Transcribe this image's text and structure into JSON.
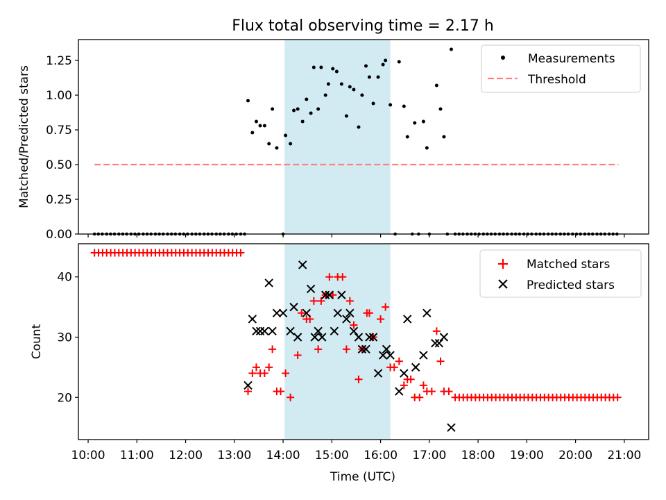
{
  "chart_data": {
    "type": "scatter",
    "title": "Flux total observing time = 2.17 h",
    "xlabel": "Time (UTC)",
    "x_range_hours": [
      9.8,
      21.5
    ],
    "x_ticks": [
      10,
      11,
      12,
      13,
      14,
      15,
      16,
      17,
      18,
      19,
      20,
      21
    ],
    "x_tick_labels": [
      "10:00",
      "11:00",
      "12:00",
      "13:00",
      "14:00",
      "15:00",
      "16:00",
      "17:00",
      "18:00",
      "19:00",
      "20:00",
      "21:00"
    ],
    "highlight_span_hours": [
      14.03,
      16.2
    ],
    "highlight_color": "#add8e6",
    "panels": [
      {
        "name": "ratio",
        "ylabel": "Matched/Predicted stars",
        "ylim": [
          0,
          1.4
        ],
        "y_ticks": [
          0,
          0.25,
          0.5,
          0.75,
          1.0,
          1.25
        ],
        "y_tick_labels": [
          "0.00",
          "0.25",
          "0.50",
          "0.75",
          "1.00",
          "1.25"
        ],
        "legend": [
          "Measurements",
          "Threshold"
        ],
        "measurements": {
          "name": "Measurements",
          "color": "#000000",
          "zero_times": [
            10.13,
            10.21,
            10.29,
            10.38,
            10.46,
            10.54,
            10.63,
            10.71,
            10.79,
            10.88,
            10.96,
            11.04,
            11.13,
            11.21,
            11.29,
            11.38,
            11.46,
            11.54,
            11.63,
            11.71,
            11.79,
            11.88,
            11.96,
            12.04,
            12.13,
            12.21,
            12.29,
            12.38,
            12.46,
            12.54,
            12.63,
            12.71,
            12.79,
            12.88,
            12.96,
            13.04,
            13.13,
            13.21,
            14.0,
            16.3,
            16.65,
            16.78,
            17.0,
            17.37,
            17.53,
            17.61,
            17.69,
            17.78,
            17.86,
            17.94,
            18.02,
            18.11,
            18.19,
            18.27,
            18.35,
            18.44,
            18.52,
            18.6,
            18.69,
            18.77,
            18.85,
            18.94,
            19.02,
            19.1,
            19.19,
            19.27,
            19.35,
            19.44,
            19.52,
            19.6,
            19.69,
            19.77,
            19.85,
            19.94,
            20.02,
            20.1,
            20.19,
            20.27,
            20.35,
            20.44,
            20.52,
            20.6,
            20.69,
            20.77,
            20.85
          ],
          "points": [
            [
              13.28,
              0.96
            ],
            [
              13.37,
              0.73
            ],
            [
              13.45,
              0.81
            ],
            [
              13.53,
              0.78
            ],
            [
              13.62,
              0.78
            ],
            [
              13.71,
              0.65
            ],
            [
              13.78,
              0.9
            ],
            [
              13.87,
              0.62
            ],
            [
              14.05,
              0.71
            ],
            [
              14.15,
              0.65
            ],
            [
              14.22,
              0.89
            ],
            [
              14.3,
              0.9
            ],
            [
              14.4,
              0.81
            ],
            [
              14.48,
              0.97
            ],
            [
              14.57,
              0.87
            ],
            [
              14.63,
              1.2
            ],
            [
              14.72,
              0.9
            ],
            [
              14.78,
              1.2
            ],
            [
              14.87,
              1.0
            ],
            [
              14.93,
              1.08
            ],
            [
              15.02,
              1.19
            ],
            [
              15.1,
              1.17
            ],
            [
              15.2,
              1.08
            ],
            [
              15.3,
              0.85
            ],
            [
              15.37,
              1.06
            ],
            [
              15.45,
              1.04
            ],
            [
              15.55,
              0.77
            ],
            [
              15.62,
              1.0
            ],
            [
              15.7,
              1.21
            ],
            [
              15.77,
              1.13
            ],
            [
              15.85,
              0.94
            ],
            [
              15.95,
              1.13
            ],
            [
              16.05,
              1.22
            ],
            [
              16.1,
              1.25
            ],
            [
              16.2,
              0.93
            ],
            [
              16.38,
              1.24
            ],
            [
              16.48,
              0.92
            ],
            [
              16.55,
              0.7
            ],
            [
              16.7,
              0.8
            ],
            [
              16.88,
              0.81
            ],
            [
              16.95,
              0.62
            ],
            [
              17.15,
              1.07
            ],
            [
              17.23,
              0.9
            ],
            [
              17.3,
              0.7
            ],
            [
              17.45,
              1.33
            ]
          ]
        },
        "threshold": {
          "name": "Threshold",
          "value": 0.5,
          "x_range_hours": [
            10.13,
            20.88
          ],
          "color": "#ff7f7f"
        }
      },
      {
        "name": "count",
        "ylabel": "Count",
        "ylim": [
          13,
          45.5
        ],
        "y_ticks": [
          20,
          30,
          40
        ],
        "y_tick_labels": [
          "20",
          "30",
          "40"
        ],
        "legend": [
          "Matched stars",
          "Predicted stars"
        ],
        "matched": {
          "name": "Matched stars",
          "color": "#ff0000",
          "flat_start": {
            "from": 10.13,
            "to": 13.21,
            "step": 0.0833,
            "value": 44
          },
          "flat_end": {
            "from": 17.53,
            "to": 20.88,
            "step": 0.0833,
            "value": 20
          },
          "points": [
            [
              13.28,
              21
            ],
            [
              13.37,
              24
            ],
            [
              13.45,
              25
            ],
            [
              13.53,
              24
            ],
            [
              13.62,
              24
            ],
            [
              13.71,
              25
            ],
            [
              13.78,
              28
            ],
            [
              13.87,
              21
            ],
            [
              13.95,
              21
            ],
            [
              14.05,
              24
            ],
            [
              14.15,
              20
            ],
            [
              14.3,
              27
            ],
            [
              14.38,
              34
            ],
            [
              14.48,
              33
            ],
            [
              14.55,
              33
            ],
            [
              14.63,
              36
            ],
            [
              14.72,
              28
            ],
            [
              14.78,
              36
            ],
            [
              14.87,
              37
            ],
            [
              14.95,
              40
            ],
            [
              15.02,
              37
            ],
            [
              15.12,
              40
            ],
            [
              15.22,
              40
            ],
            [
              15.3,
              28
            ],
            [
              15.37,
              36
            ],
            [
              15.45,
              32
            ],
            [
              15.55,
              23
            ],
            [
              15.62,
              28
            ],
            [
              15.72,
              34
            ],
            [
              15.77,
              34
            ],
            [
              15.85,
              30
            ],
            [
              16.0,
              33
            ],
            [
              16.1,
              35
            ],
            [
              16.2,
              25
            ],
            [
              16.28,
              25
            ],
            [
              16.38,
              26
            ],
            [
              16.48,
              22
            ],
            [
              16.55,
              23
            ],
            [
              16.62,
              23
            ],
            [
              16.7,
              20
            ],
            [
              16.8,
              20
            ],
            [
              16.88,
              22
            ],
            [
              16.95,
              21
            ],
            [
              17.05,
              21
            ],
            [
              17.15,
              31
            ],
            [
              17.23,
              26
            ],
            [
              17.3,
              21
            ],
            [
              17.4,
              21
            ]
          ]
        },
        "predicted": {
          "name": "Predicted stars",
          "color": "#000000",
          "points": [
            [
              13.28,
              22
            ],
            [
              13.37,
              33
            ],
            [
              13.45,
              31
            ],
            [
              13.53,
              31
            ],
            [
              13.62,
              31
            ],
            [
              13.71,
              39
            ],
            [
              13.78,
              31
            ],
            [
              13.87,
              34
            ],
            [
              14.0,
              34
            ],
            [
              14.15,
              31
            ],
            [
              14.22,
              35
            ],
            [
              14.3,
              30
            ],
            [
              14.4,
              42
            ],
            [
              14.48,
              34
            ],
            [
              14.57,
              38
            ],
            [
              14.65,
              30
            ],
            [
              14.72,
              31
            ],
            [
              14.8,
              30
            ],
            [
              14.87,
              37
            ],
            [
              14.95,
              37
            ],
            [
              15.05,
              31
            ],
            [
              15.12,
              34
            ],
            [
              15.2,
              37
            ],
            [
              15.3,
              33
            ],
            [
              15.37,
              34
            ],
            [
              15.45,
              31
            ],
            [
              15.55,
              30
            ],
            [
              15.62,
              28
            ],
            [
              15.7,
              28
            ],
            [
              15.77,
              30
            ],
            [
              15.85,
              30
            ],
            [
              15.95,
              24
            ],
            [
              16.05,
              27
            ],
            [
              16.12,
              28
            ],
            [
              16.2,
              27
            ],
            [
              16.38,
              21
            ],
            [
              16.48,
              24
            ],
            [
              16.55,
              33
            ],
            [
              16.72,
              25
            ],
            [
              16.88,
              27
            ],
            [
              16.95,
              34
            ],
            [
              17.12,
              29
            ],
            [
              17.2,
              29
            ],
            [
              17.3,
              30
            ],
            [
              17.45,
              15
            ]
          ]
        }
      }
    ]
  }
}
